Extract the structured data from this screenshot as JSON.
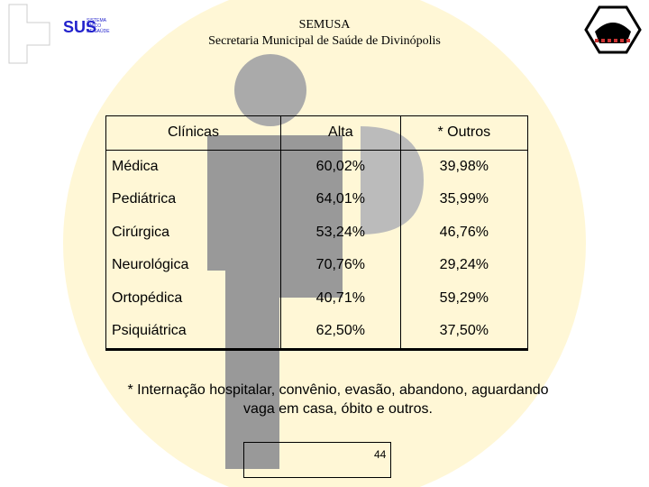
{
  "header": {
    "logo_text": "SUS",
    "logo_subtext": [
      "SISTEMA",
      "ÚNICO",
      "DE SAÚDE"
    ],
    "title": "SEMUSA",
    "subtitle": "Secretaria Municipal de Saúde de Divinópolis"
  },
  "table": {
    "columns": [
      "Clínicas",
      "Alta",
      "* Outros"
    ],
    "rows": [
      [
        "Médica",
        "60,02%",
        "39,98%"
      ],
      [
        "Pediátrica",
        "64,01%",
        "35,99%"
      ],
      [
        "Cirúrgica",
        "53,24%",
        "46,76%"
      ],
      [
        "Neurológica",
        "70,76%",
        "29,24%"
      ],
      [
        "Ortopédica",
        "40,71%",
        "59,29%"
      ],
      [
        "Psiquiátrica",
        "62,50%",
        "37,50%"
      ]
    ]
  },
  "footnote": [
    "* Internação hospitalar, convênio, evasão, abandono, aguardando",
    "vaga em casa, óbito e outros."
  ],
  "page_number": "44"
}
